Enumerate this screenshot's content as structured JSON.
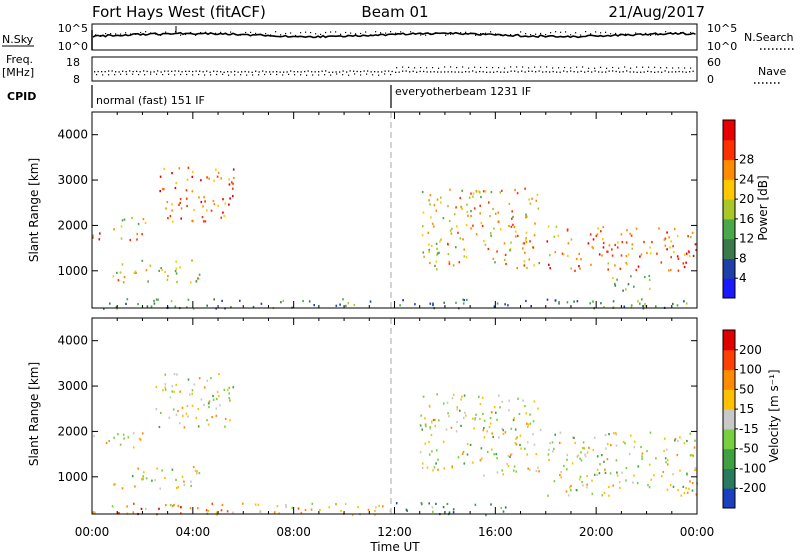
{
  "header": {
    "radar": "Fort Hays West (fitACF)",
    "beam": "Beam 01",
    "date": "21/Aug/2017"
  },
  "top_panels": {
    "nsky_label": "N.Sky",
    "nsky_ticks": [
      "10^5",
      "10^0"
    ],
    "nsearch_label": "N.Search",
    "nsearch_ticks": [
      "10^5",
      "10^0"
    ],
    "freq_label_1": "Freq.",
    "freq_label_2": "[MHz]",
    "freq_ticks": [
      "18",
      "8"
    ],
    "nave_label": "Nave",
    "nave_ticks": [
      "60",
      "0"
    ],
    "cpid_label": "CPID",
    "cpid_segments": [
      "normal (fast) 151 IF",
      "everyotherbeam 1231 IF"
    ]
  },
  "chart_data": [
    {
      "type": "heatmap",
      "panel": "power",
      "ylabel": "Slant Range [km]",
      "xlabel": "Time UT",
      "ylim": [
        180,
        4500
      ],
      "y_ticks": [
        1000,
        2000,
        3000,
        4000
      ],
      "x_ticks": [
        "00:00",
        "04:00",
        "08:00",
        "12:00",
        "16:00",
        "20:00",
        "00:00"
      ],
      "x_range_hours": [
        0,
        24
      ],
      "mode_change_hour": 12,
      "colorbar": {
        "label": "Power [dB]",
        "ticks": [
          "4",
          "8",
          "12",
          "16",
          "20",
          "24",
          "28"
        ],
        "colors": [
          "#1a1aff",
          "#2040a8",
          "#3a7a4a",
          "#4aa84a",
          "#a8c828",
          "#ffc800",
          "#ff8c00",
          "#ff3000",
          "#e80000"
        ]
      },
      "regions": [
        {
          "t": [
            0.0,
            2.2
          ],
          "r": [
            1700,
            1950
          ],
          "level": 0.72
        },
        {
          "t": [
            0.8,
            2.4
          ],
          "r": [
            1950,
            2200
          ],
          "level": 0.55
        },
        {
          "t": [
            0.8,
            4.3
          ],
          "r": [
            750,
            1250
          ],
          "level": 0.6
        },
        {
          "t": [
            2.5,
            5.6
          ],
          "r": [
            2100,
            3300
          ],
          "level": 0.78
        },
        {
          "t": [
            0.0,
            24.0
          ],
          "r": [
            180,
            400
          ],
          "level": 0.3
        },
        {
          "t": [
            13.0,
            17.8
          ],
          "r": [
            1050,
            2850
          ],
          "level": 0.62
        },
        {
          "t": [
            18.0,
            24.0
          ],
          "r": [
            1000,
            2000
          ],
          "level": 0.74
        },
        {
          "t": [
            20.6,
            22.2
          ],
          "r": [
            500,
            950
          ],
          "level": 0.5
        }
      ]
    },
    {
      "type": "heatmap",
      "panel": "velocity",
      "ylabel": "Slant Range [km]",
      "xlabel": "Time UT",
      "ylim": [
        180,
        4500
      ],
      "y_ticks": [
        1000,
        2000,
        3000,
        4000
      ],
      "x_ticks": [
        "00:00",
        "04:00",
        "08:00",
        "12:00",
        "16:00",
        "20:00",
        "00:00"
      ],
      "x_range_hours": [
        0,
        24
      ],
      "colorbar": {
        "label": "Velocity [m s⁻¹]",
        "ticks": [
          "200",
          "100",
          "50",
          "15",
          "-15",
          "-50",
          "-100",
          "-200"
        ],
        "colors": [
          "#1a40c0",
          "#2a7a60",
          "#3ea040",
          "#78d040",
          "#c8c8c8",
          "#ffc000",
          "#ff8c00",
          "#ff4000",
          "#e00000"
        ]
      },
      "regions": [
        {
          "t": [
            0.0,
            2.2
          ],
          "r": [
            1650,
            2000
          ],
          "level": 0.5
        },
        {
          "t": [
            0.8,
            4.3
          ],
          "r": [
            750,
            1250
          ],
          "level": 0.5
        },
        {
          "t": [
            2.5,
            5.6
          ],
          "r": [
            2100,
            3300
          ],
          "level": 0.5
        },
        {
          "t": [
            13.0,
            17.8
          ],
          "r": [
            1050,
            2850
          ],
          "level": 0.5
        },
        {
          "t": [
            18.0,
            24.0
          ],
          "r": [
            600,
            2000
          ],
          "level": 0.5
        },
        {
          "t": [
            0.0,
            12.0
          ],
          "r": [
            180,
            450
          ],
          "level": 0.62
        },
        {
          "t": [
            12.0,
            16.5
          ],
          "r": [
            180,
            450
          ],
          "level": 0.3
        },
        {
          "t": [
            1.5,
            3.5
          ],
          "r": [
            180,
            380
          ],
          "level": 0.95
        }
      ]
    }
  ]
}
